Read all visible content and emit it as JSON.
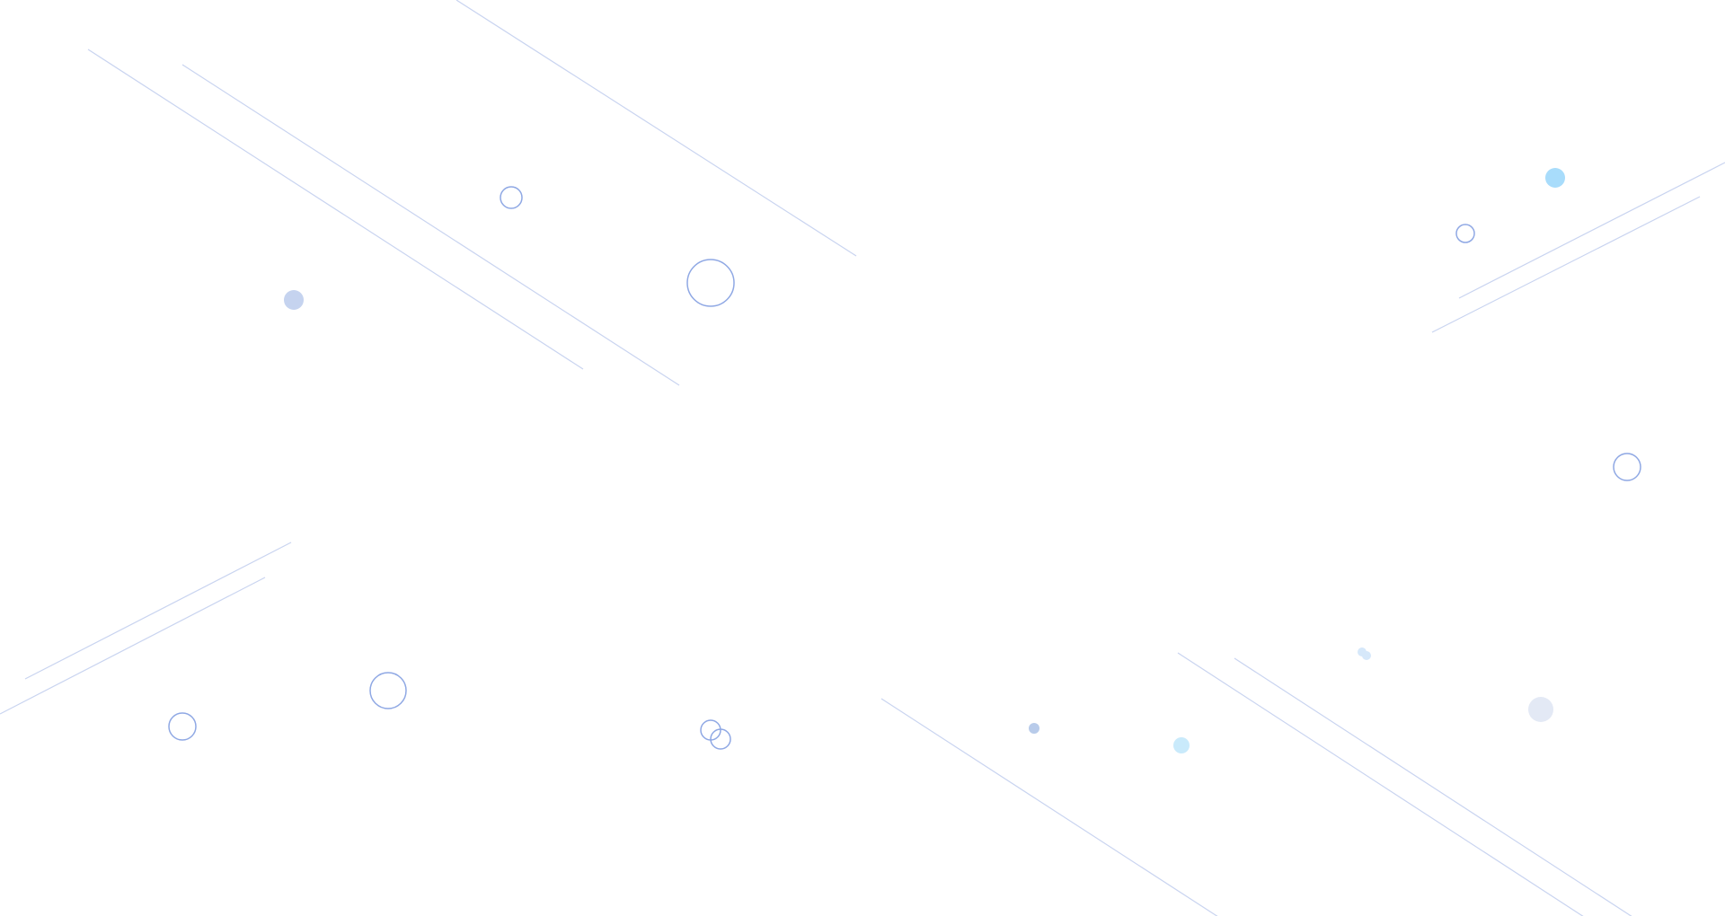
{
  "colors": {
    "background": "#ffffff",
    "line": "#c9d4f0",
    "ring": "#8fa8e4",
    "dot_blue": "#c5d3ef",
    "dot_cyan": "#a8dcfb",
    "dot_steel": "#b8cbea",
    "dot_pale_cyan": "#c9eafb",
    "dot_gray": "#e3e9f5",
    "dot_faint": "#d6e8fa"
  }
}
